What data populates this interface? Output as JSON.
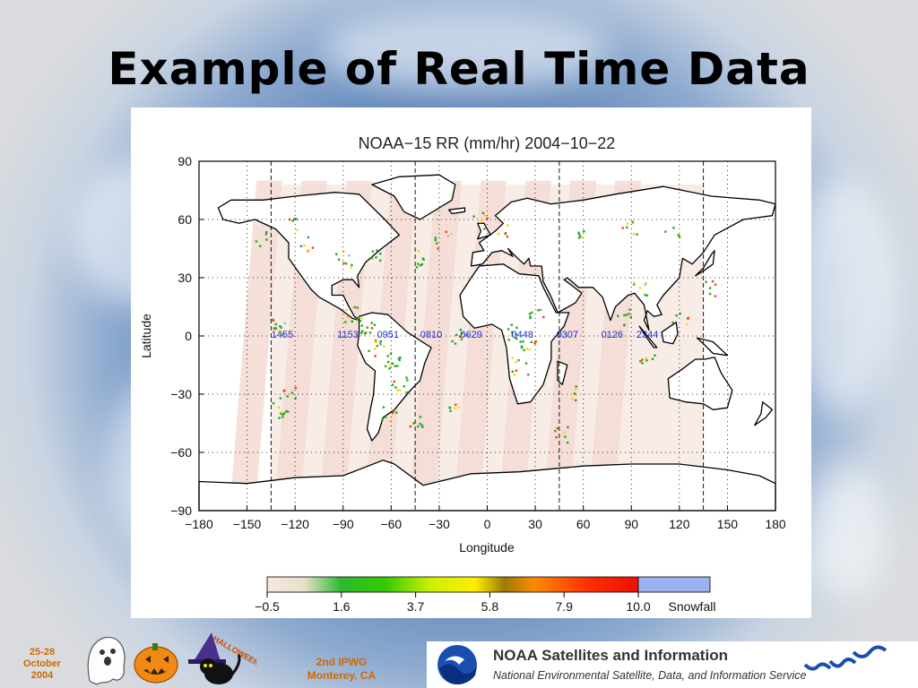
{
  "slide": {
    "title": "Example of Real Time Data",
    "footer": {
      "dates": [
        "25-28",
        "October",
        "2004"
      ],
      "conference": [
        "2nd IPWG",
        "Monterey, CA"
      ],
      "banner_title": "NOAA Satellites and Information",
      "banner_subtitle": "National Environmental Satellite, Data, and Information Service",
      "halloween_text": "HALLOWEEN"
    }
  },
  "chart_data": {
    "type": "map",
    "title": "NOAA−15 RR (mm/hr) 2004−10−22",
    "xlabel": "Longitude",
    "ylabel": "Latitude",
    "xlim": [
      -180,
      180
    ],
    "ylim": [
      -90,
      90
    ],
    "x_ticks": [
      -180,
      -150,
      -120,
      -90,
      -60,
      -30,
      0,
      30,
      60,
      90,
      120,
      150,
      180
    ],
    "y_ticks": [
      -90,
      -60,
      -30,
      0,
      30,
      60,
      90
    ],
    "x_tick_labels": [
      "−180",
      "−150",
      "−120",
      "−90",
      "−60",
      "−30",
      "0",
      "30",
      "60",
      "90",
      "120",
      "150",
      "180"
    ],
    "y_tick_labels": [
      "−90",
      "−60",
      "−30",
      "0",
      "30",
      "60",
      "90"
    ],
    "dashed_meridians": [
      -135,
      -45,
      45,
      135
    ],
    "grid": "dotted",
    "overpass_times": [
      {
        "lon": -128,
        "label": "1455"
      },
      {
        "lon": -87,
        "label": "1153"
      },
      {
        "lon": -62,
        "label": "0951"
      },
      {
        "lon": -35,
        "label": "0810"
      },
      {
        "lon": -10,
        "label": "0629"
      },
      {
        "lon": 22,
        "label": "0448"
      },
      {
        "lon": 50,
        "label": "0307"
      },
      {
        "lon": 78,
        "label": "0126"
      },
      {
        "lon": 100,
        "label": "2344"
      }
    ],
    "colorbar": {
      "ticks": [
        "−0.5",
        "1.6",
        "3.7",
        "5.8",
        "7.9",
        "10.0"
      ],
      "tick_values": [
        -0.5,
        1.6,
        3.7,
        5.8,
        7.9,
        10.0
      ],
      "extra_label": "Snowfall",
      "colors": [
        "#f6e8e2",
        "#2eb82e",
        "#7fe000",
        "#ffff00",
        "#ff8c00",
        "#ff2000",
        "#9ab3f0"
      ]
    },
    "colors": {
      "swath": "#f3dcd3",
      "rain_light": "#27a927",
      "rain_moderate": "#ffd000",
      "rain_heavy": "#ff4000",
      "snow": "#9ab3f0",
      "overpass_label": "#1c2fd6"
    }
  }
}
